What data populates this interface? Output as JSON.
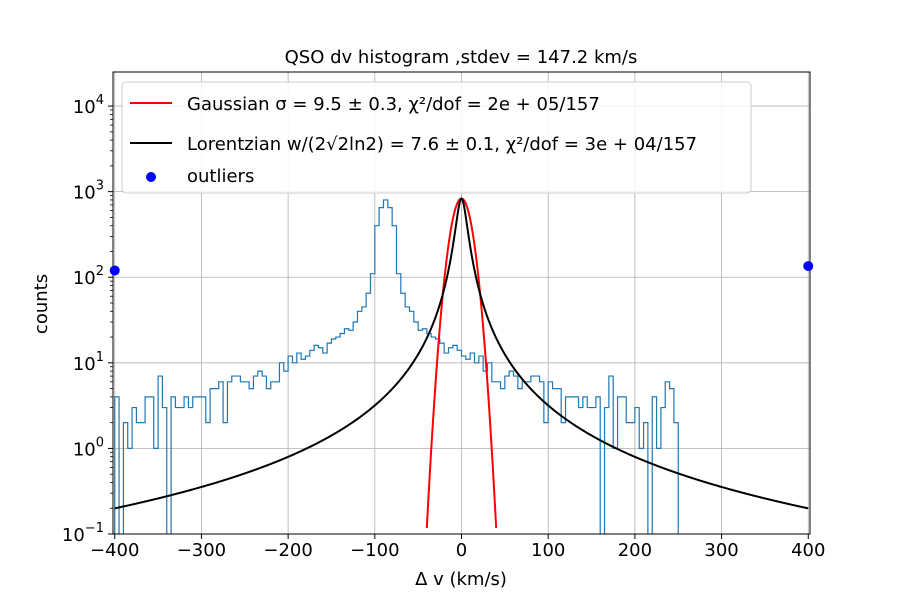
{
  "chart_data": {
    "type": "line",
    "title": "QSO dv histogram ,stdev = 147.2 km/s",
    "xlabel": "Δ v (km/s)",
    "ylabel": "counts",
    "xlim": [
      -402,
      402
    ],
    "ylim": [
      0.1,
      25000
    ],
    "yscale": "log",
    "grid": true,
    "legend_position": "top-left",
    "x_ticks": [
      -400,
      -300,
      -200,
      -100,
      0,
      100,
      200,
      300,
      400
    ],
    "x_tick_labels": [
      "−400",
      "−300",
      "−200",
      "−100",
      "0",
      "100",
      "200",
      "300",
      "400"
    ],
    "y_ticks": [
      0.1,
      1,
      10,
      100,
      1000,
      10000
    ],
    "y_tick_labels": [
      {
        "base": "10",
        "exp": "−1"
      },
      {
        "base": "10",
        "exp": "0"
      },
      {
        "base": "10",
        "exp": "1"
      },
      {
        "base": "10",
        "exp": "2"
      },
      {
        "base": "10",
        "exp": "3"
      },
      {
        "base": "10",
        "exp": "4"
      }
    ],
    "legend": [
      {
        "label": "Gaussian σ = 9.5 ± 0.3, χ²/dof = 2e + 05/157",
        "kind": "line",
        "color": "#ff0000"
      },
      {
        "label": "Lorentzian w/(2√2ln2) = 7.6 ± 0.1, χ²/dof = 3e + 04/157",
        "kind": "line",
        "color": "#000000"
      },
      {
        "label": "outliers",
        "kind": "marker",
        "color": "#0000ff"
      }
    ],
    "series": [
      {
        "name": "histogram",
        "kind": "step",
        "color": "#1f77b4",
        "bin_width": 5,
        "bin_start": -400,
        "counts": [
          4,
          0,
          2,
          1,
          3,
          2,
          2,
          4,
          4,
          1,
          7,
          3,
          0,
          4,
          3,
          3,
          4,
          3,
          4,
          4,
          4,
          2,
          5,
          5,
          6,
          2,
          6,
          7,
          7,
          6,
          6,
          5,
          7,
          8,
          7,
          5,
          6,
          6,
          10,
          8,
          12,
          10,
          13,
          11,
          12,
          14,
          16,
          15,
          13,
          17,
          19,
          20,
          22,
          25,
          24,
          30,
          40,
          45,
          65,
          110,
          400,
          650,
          800,
          650,
          400,
          110,
          65,
          45,
          40,
          30,
          24,
          25,
          22,
          20,
          19,
          17,
          13,
          15,
          16,
          14,
          12,
          11,
          13,
          10,
          12,
          8,
          10,
          6,
          6,
          5,
          7,
          8,
          7,
          5,
          6,
          6,
          7,
          7,
          6,
          2,
          6,
          5,
          5,
          2,
          4,
          4,
          4,
          3,
          4,
          3,
          3,
          4,
          0,
          3,
          7,
          1,
          4,
          4,
          2,
          2,
          3,
          1,
          2,
          0,
          4,
          1,
          3,
          6,
          5,
          2
        ]
      },
      {
        "name": "Gaussian fit",
        "kind": "line",
        "color": "#ff0000",
        "amplitude": 830,
        "sigma": 9.5,
        "range": [
          -40,
          40
        ]
      },
      {
        "name": "Lorentzian fit",
        "kind": "line",
        "color": "#000000",
        "amplitude": 830,
        "hwhm": 6.2,
        "range": [
          -400,
          400
        ]
      },
      {
        "name": "outliers",
        "kind": "scatter",
        "color": "#0000ff",
        "points": [
          {
            "x": -400,
            "y": 120
          },
          {
            "x": 400,
            "y": 135
          }
        ]
      }
    ]
  }
}
